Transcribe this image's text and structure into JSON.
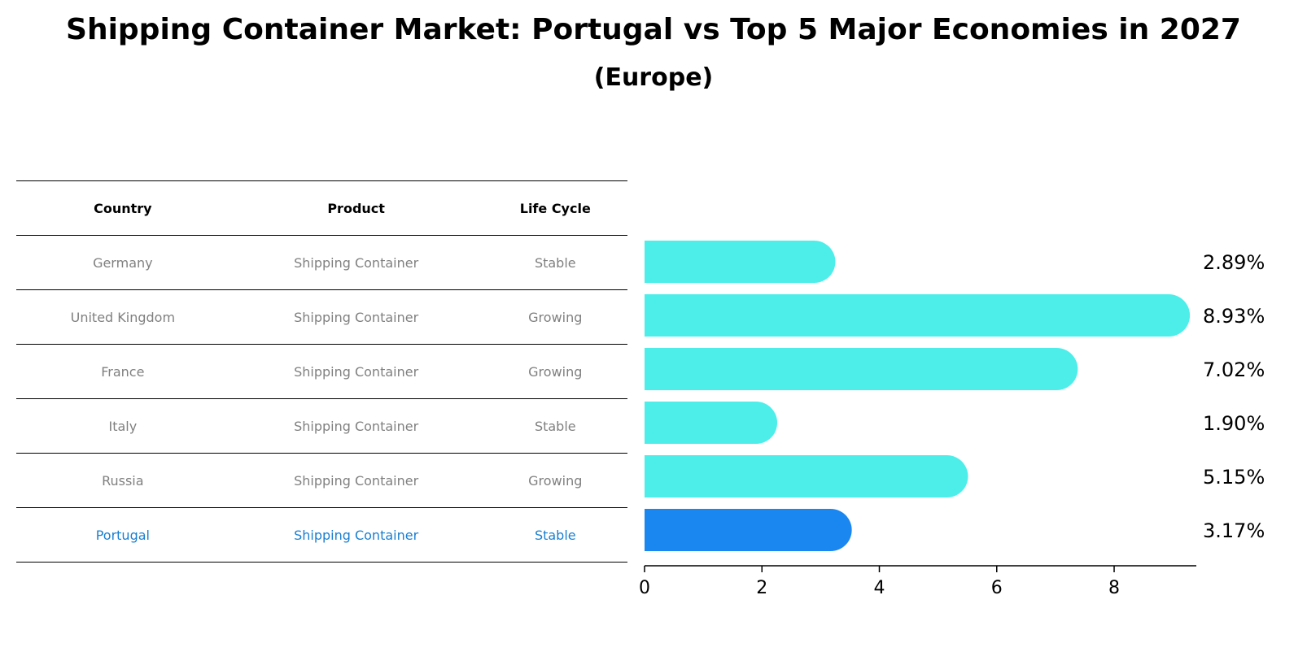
{
  "title": "Shipping Container Market: Portugal vs Top 5 Major Economies in 2027",
  "subtitle": "(Europe)",
  "table": {
    "headers": [
      "Country",
      "Product",
      "Life Cycle"
    ],
    "rows": [
      {
        "country": "Germany",
        "product": "Shipping Container",
        "life_cycle": "Stable"
      },
      {
        "country": "United Kingdom",
        "product": "Shipping Container",
        "life_cycle": "Growing"
      },
      {
        "country": "France",
        "product": "Shipping Container",
        "life_cycle": "Growing"
      },
      {
        "country": "Italy",
        "product": "Shipping Container",
        "life_cycle": "Stable"
      },
      {
        "country": "Russia",
        "product": "Shipping Container",
        "life_cycle": "Growing"
      },
      {
        "country": "Portugal",
        "product": "Shipping Container",
        "life_cycle": "Stable"
      }
    ]
  },
  "chart_data": {
    "type": "bar",
    "orientation": "horizontal",
    "categories": [
      "Germany",
      "United Kingdom",
      "France",
      "Italy",
      "Russia",
      "Portugal"
    ],
    "values": [
      2.89,
      8.93,
      7.02,
      1.9,
      5.15,
      3.17
    ],
    "value_labels": [
      "2.89%",
      "8.93%",
      "7.02%",
      "1.90%",
      "5.15%",
      "3.17%"
    ],
    "highlight": "Portugal",
    "xlim": [
      0,
      9.4
    ],
    "xticks": [
      0,
      2,
      4,
      6,
      8
    ],
    "colors": {
      "default": "#4deeea",
      "highlight": "#1a86f0"
    }
  }
}
